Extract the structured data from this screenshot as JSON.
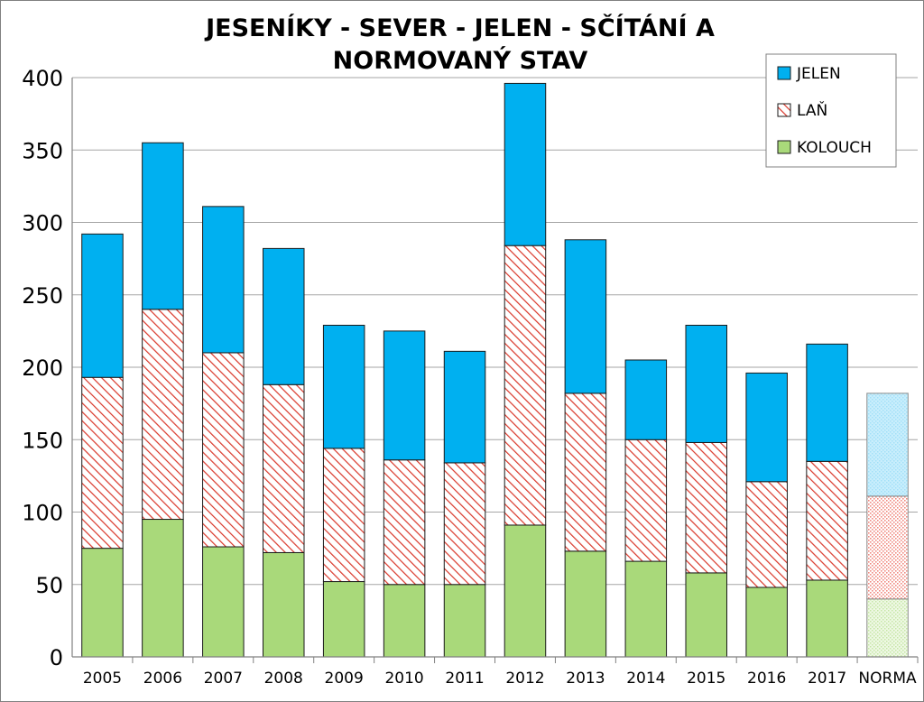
{
  "chart_data": {
    "type": "bar",
    "stacked": true,
    "title_lines": [
      "JESENÍKY - SEVER - JELEN - SČÍTÁNÍ A",
      "NORMOVANÝ STAV"
    ],
    "categories": [
      "2005",
      "2006",
      "2007",
      "2008",
      "2009",
      "2010",
      "2011",
      "2012",
      "2013",
      "2014",
      "2015",
      "2016",
      "2017",
      "NORMA"
    ],
    "series": [
      {
        "name": "KOLOUCH",
        "values": [
          75,
          95,
          76,
          72,
          52,
          50,
          50,
          91,
          73,
          66,
          58,
          48,
          53,
          40
        ],
        "color": "#a9d97a"
      },
      {
        "name": "LAŇ",
        "values": [
          118,
          145,
          134,
          116,
          92,
          86,
          84,
          193,
          109,
          84,
          90,
          73,
          82,
          71
        ],
        "color": "#d9372a",
        "pattern": "hatch"
      },
      {
        "name": "JELEN",
        "values": [
          99,
          115,
          101,
          94,
          85,
          89,
          77,
          112,
          106,
          55,
          81,
          75,
          81,
          71
        ],
        "color": "#00b0f0"
      }
    ],
    "highlight_category": "NORMA",
    "yticks": [
      0,
      50,
      100,
      150,
      200,
      250,
      300,
      350,
      400
    ],
    "ylim": [
      0,
      400
    ],
    "grid": true,
    "legend_position": "top-right",
    "legend_order": [
      "JELEN",
      "LAŇ",
      "KOLOUCH"
    ]
  }
}
